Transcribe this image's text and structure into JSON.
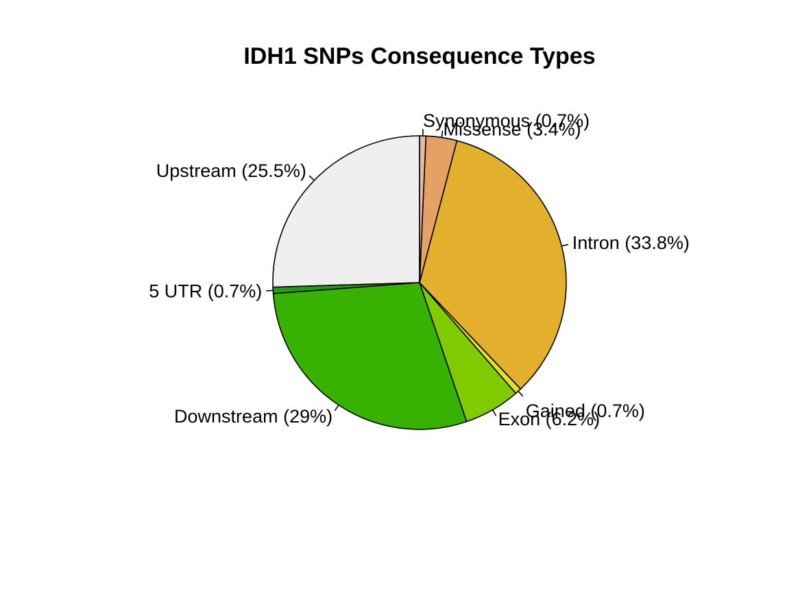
{
  "chart_data": {
    "type": "pie",
    "title": "IDH1 SNPs Consequence Types",
    "start_angle_deg": 90,
    "direction": "counterclockwise",
    "slices": [
      {
        "label": "Upstream (25.5%)",
        "name": "Upstream",
        "value": 25.5,
        "color": "#efefef"
      },
      {
        "label": "5 UTR (0.7%)",
        "name": "5 UTR",
        "value": 0.7,
        "color": "#1f9e0e"
      },
      {
        "label": "Downstream (29%)",
        "name": "Downstream",
        "value": 29.0,
        "color": "#38b200"
      },
      {
        "label": "Exon (6.2%)",
        "name": "Exon",
        "value": 6.2,
        "color": "#7fcb00"
      },
      {
        "label": "Gained (0.7%)",
        "name": "Gained",
        "value": 0.7,
        "color": "#e0e220"
      },
      {
        "label": "Intron (33.8%)",
        "name": "Intron",
        "value": 33.8,
        "color": "#e3b02e"
      },
      {
        "label": "Missense (3.4%)",
        "name": "Missense",
        "value": 3.4,
        "color": "#e5a063"
      },
      {
        "label": "Synonymous (0.7%)",
        "name": "Synonymous",
        "value": 0.7,
        "color": "#ebb6a3"
      }
    ]
  }
}
